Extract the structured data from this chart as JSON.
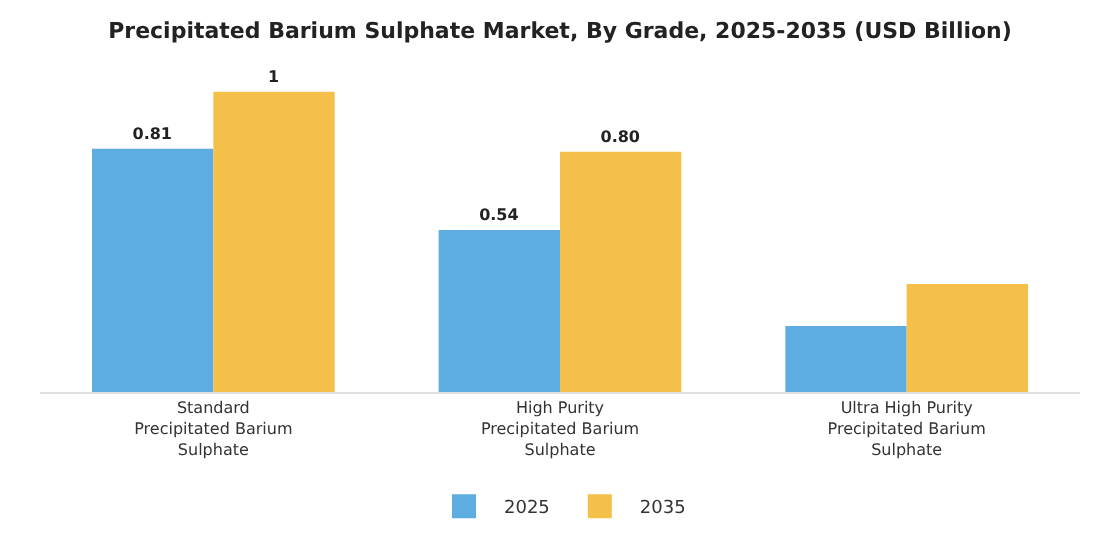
{
  "chart_data": {
    "type": "bar",
    "title": "Precipitated Barium Sulphate Market, By Grade, 2025-2035 (USD Billion)",
    "categories": [
      "Standard\nPrecipitated Barium\nSulphate",
      "High Purity\nPrecipitated Barium\nSulphate",
      "Ultra High Purity\nPrecipitated Barium\nSulphate"
    ],
    "series": [
      {
        "name": "2025",
        "color": "#5dade2",
        "values": [
          0.81,
          0.54,
          0.22
        ],
        "value_labels": [
          "0.81",
          "0.54",
          null
        ]
      },
      {
        "name": "2035",
        "color": "#f5c04a",
        "values": [
          1,
          0.8,
          0.36
        ],
        "value_labels": [
          "1",
          "0.80",
          null
        ]
      }
    ],
    "tick_labels": "x",
    "legend": "bottom"
  }
}
